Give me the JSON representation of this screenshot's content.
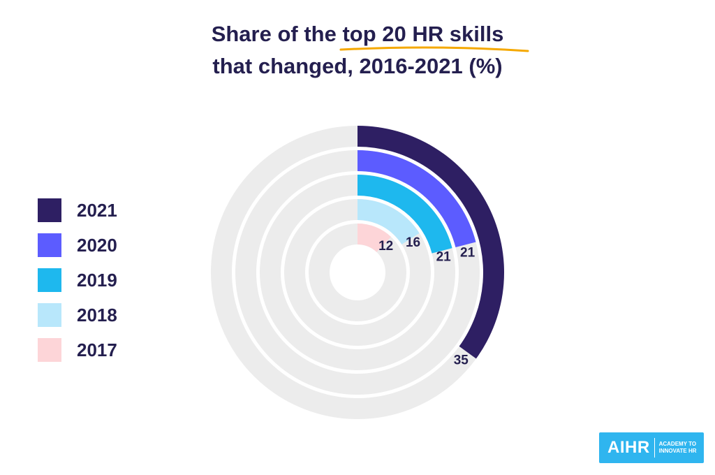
{
  "title": {
    "line1_pre": "Share of the ",
    "line1_highlight": "top 20 HR skills",
    "line2": "that changed, 2016-2021 (%)"
  },
  "colors": {
    "title": "#241f4f",
    "track": "#ececec",
    "underline": "#f5a800",
    "label": "#241f4f"
  },
  "legend": [
    {
      "label": "2021",
      "color": "#2e1f63"
    },
    {
      "label": "2020",
      "color": "#5c5cff"
    },
    {
      "label": "2019",
      "color": "#1eb8ee"
    },
    {
      "label": "2018",
      "color": "#b8e7fb"
    },
    {
      "label": "2017",
      "color": "#fdd5d8"
    }
  ],
  "chart_data": {
    "type": "radial-bar",
    "title": "Share of the top 20 HR skills that changed, 2016-2021 (%)",
    "max": 100,
    "series": [
      {
        "name": "2021",
        "value": 35,
        "label": "35",
        "color": "#2e1f63"
      },
      {
        "name": "2020",
        "value": 21,
        "label": "21",
        "color": "#5c5cff"
      },
      {
        "name": "2019",
        "value": 21,
        "label": "21",
        "color": "#1eb8ee"
      },
      {
        "name": "2018",
        "value": 16,
        "label": "16",
        "color": "#b8e7fb"
      },
      {
        "name": "2017",
        "value": 12,
        "label": "12",
        "color": "#fdd5d8"
      }
    ]
  },
  "logo": {
    "main": "AIHR",
    "sub_line1": "ACADEMY TO",
    "sub_line2": "INNOVATE HR"
  }
}
